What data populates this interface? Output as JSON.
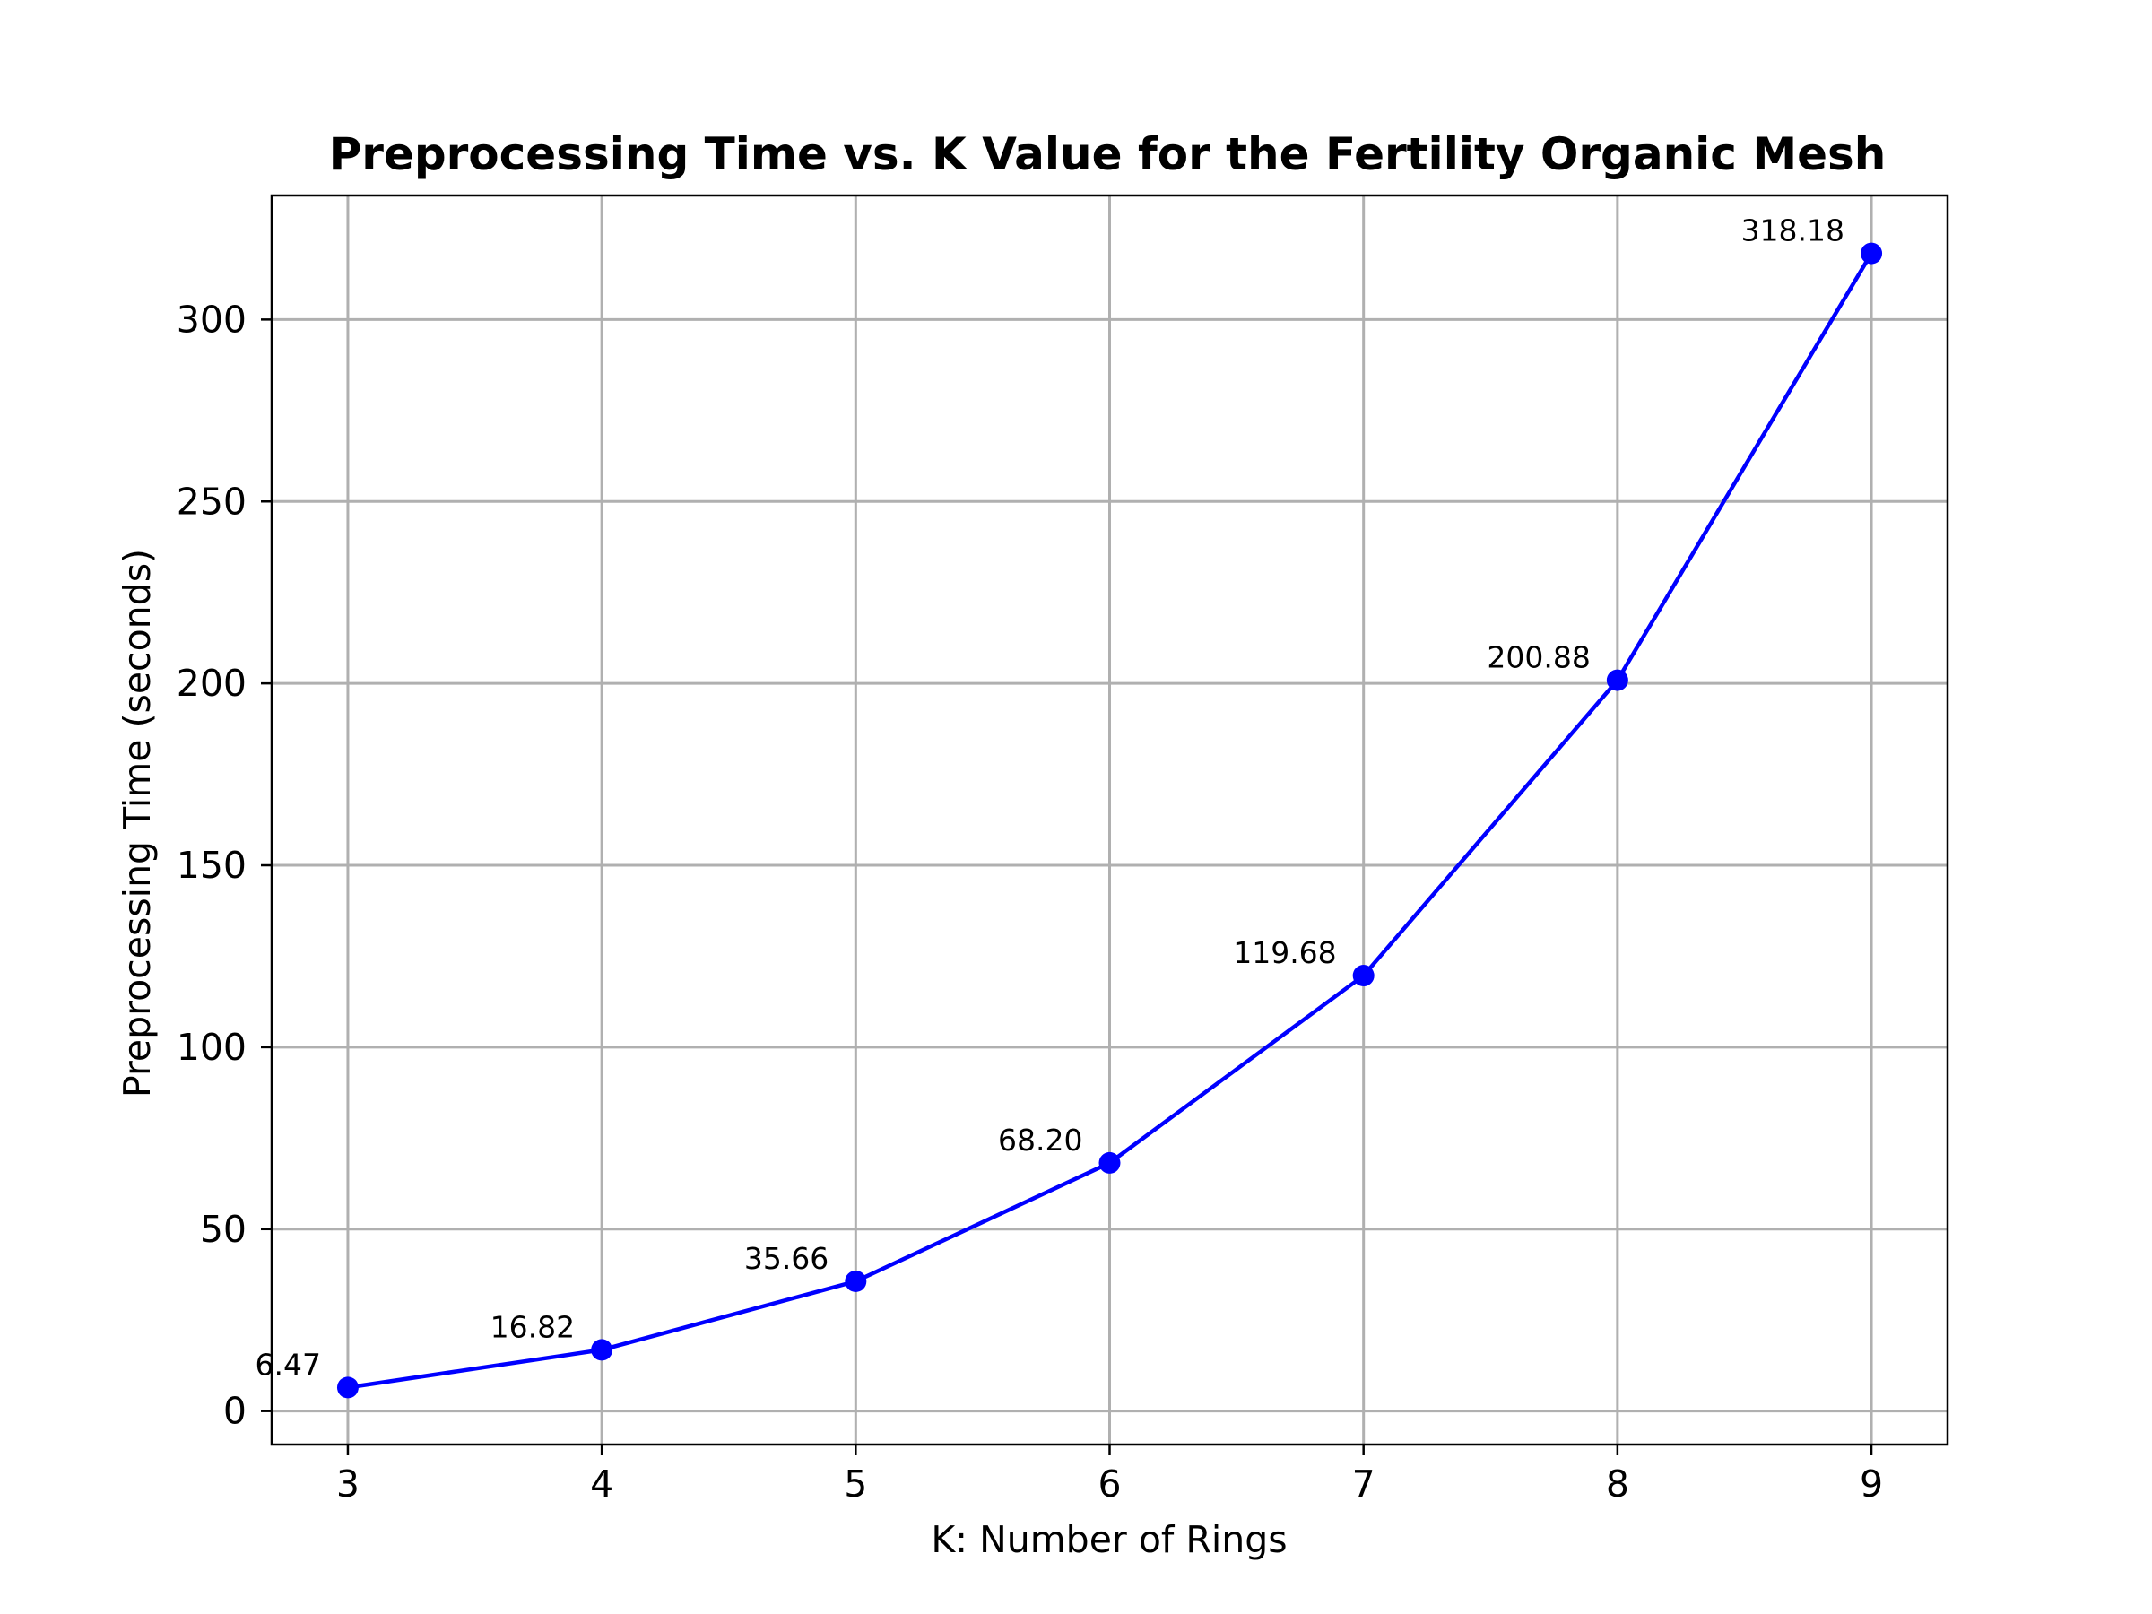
{
  "chart_data": {
    "type": "line",
    "title": "Preprocessing Time vs. K Value for the Fertility Organic Mesh",
    "xlabel": "K: Number of Rings",
    "ylabel": "Preprocessing Time (seconds)",
    "x": [
      3,
      4,
      5,
      6,
      7,
      8,
      9
    ],
    "series": [
      {
        "values": [
          6.47,
          16.82,
          35.66,
          68.2,
          119.68,
          200.88,
          318.18
        ],
        "color": "#0000ff",
        "marker": "circle"
      }
    ],
    "data_labels": [
      "6.47",
      "16.82",
      "35.66",
      "68.20",
      "119.68",
      "200.88",
      "318.18"
    ],
    "x_ticks": [
      3,
      4,
      5,
      6,
      7,
      8,
      9
    ],
    "y_ticks": [
      0,
      50,
      100,
      150,
      200,
      250,
      300
    ],
    "xlim": [
      2.7,
      9.3
    ],
    "ylim": [
      -9.2,
      334.1
    ],
    "grid": true,
    "legend": false
  }
}
